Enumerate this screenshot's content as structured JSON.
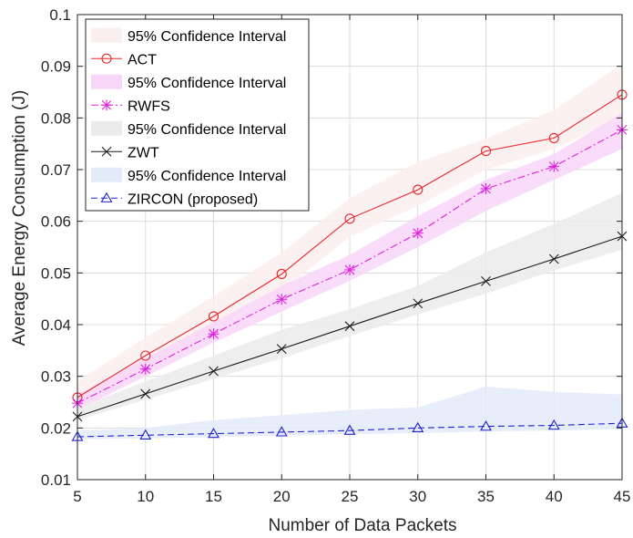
{
  "chart_data": {
    "type": "line",
    "xlabel": "Number of Data Packets",
    "ylabel": "Average Energy Consumption (J)",
    "x": [
      5,
      10,
      15,
      20,
      25,
      30,
      35,
      40,
      45
    ],
    "xlim": [
      5,
      45
    ],
    "ylim": [
      0.01,
      0.1
    ],
    "x_ticks": [
      "5",
      "10",
      "15",
      "20",
      "25",
      "30",
      "35",
      "40",
      "45"
    ],
    "y_ticks": [
      "0.01",
      "0.02",
      "0.03",
      "0.04",
      "0.05",
      "0.06",
      "0.07",
      "0.08",
      "0.09",
      "0.1"
    ],
    "grid": true,
    "legend_position": "top-left",
    "series": [
      {
        "name": "ACT",
        "marker": "circle",
        "line_style": "solid",
        "color": "#e8262a",
        "band_color": "#fbeeee",
        "band_label": "95% Confidence Interval",
        "values": [
          0.0259,
          0.034,
          0.0416,
          0.0498,
          0.0605,
          0.0661,
          0.0736,
          0.0761,
          0.0845
        ],
        "ci_lower": [
          0.024,
          0.0315,
          0.039,
          0.0465,
          0.057,
          0.063,
          0.07,
          0.074,
          0.08
        ],
        "ci_upper": [
          0.029,
          0.0375,
          0.0455,
          0.054,
          0.0645,
          0.0715,
          0.076,
          0.0815,
          0.0905
        ]
      },
      {
        "name": "RWFS",
        "marker": "asterisk",
        "line_style": "dashdot",
        "color": "#e020e0",
        "band_color": "#f8d6f8",
        "band_label": "95% Confidence Interval",
        "values": [
          0.0248,
          0.0314,
          0.0382,
          0.0449,
          0.0506,
          0.0577,
          0.0663,
          0.0706,
          0.0777
        ],
        "ci_lower": [
          0.0235,
          0.03,
          0.0365,
          0.0425,
          0.0485,
          0.055,
          0.062,
          0.068,
          0.074
        ],
        "ci_upper": [
          0.0265,
          0.0335,
          0.0405,
          0.0475,
          0.0535,
          0.061,
          0.068,
          0.073,
          0.081
        ]
      },
      {
        "name": "ZWT",
        "marker": "x",
        "line_style": "solid",
        "color": "#1a1a1a",
        "band_color": "#ebebeb",
        "band_label": "95% Confidence Interval",
        "values": [
          0.0222,
          0.0266,
          0.031,
          0.0353,
          0.0397,
          0.0441,
          0.0484,
          0.0527,
          0.0571
        ],
        "ci_lower": [
          0.0215,
          0.0255,
          0.0295,
          0.0335,
          0.0378,
          0.042,
          0.046,
          0.0505,
          0.0545
        ],
        "ci_upper": [
          0.024,
          0.029,
          0.034,
          0.039,
          0.043,
          0.0475,
          0.054,
          0.0595,
          0.0655
        ]
      },
      {
        "name": "ZIRCON (proposed)",
        "marker": "triangle",
        "line_style": "dashed",
        "color": "#2020d0",
        "band_color": "#e3ebf8",
        "band_label": "95% Confidence Interval",
        "values": [
          0.0183,
          0.0186,
          0.0189,
          0.0192,
          0.0195,
          0.02,
          0.0203,
          0.0205,
          0.0209
        ],
        "ci_lower": [
          0.0178,
          0.018,
          0.0182,
          0.0185,
          0.0188,
          0.019,
          0.0193,
          0.0195,
          0.0198
        ],
        "ci_upper": [
          0.0195,
          0.02,
          0.0215,
          0.0225,
          0.0235,
          0.024,
          0.028,
          0.027,
          0.0265
        ]
      }
    ]
  }
}
